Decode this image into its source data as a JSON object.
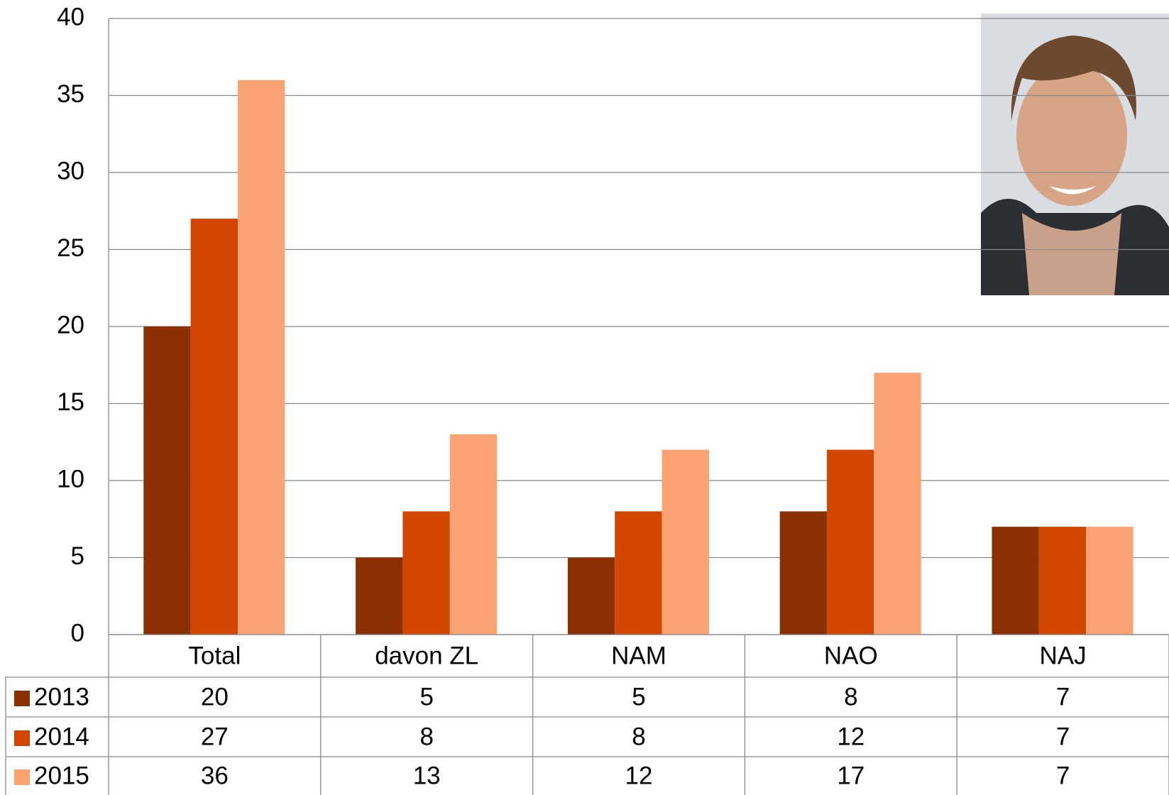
{
  "chart_data": {
    "type": "bar",
    "categories": [
      "Total",
      "davon ZL",
      "NAM",
      "NAO",
      "NAJ"
    ],
    "series": [
      {
        "name": "2013",
        "color": "#8b3000",
        "values": [
          20,
          5,
          5,
          8,
          7
        ]
      },
      {
        "name": "2014",
        "color": "#d24600",
        "values": [
          27,
          8,
          8,
          12,
          7
        ]
      },
      {
        "name": "2015",
        "color": "#fca374",
        "values": [
          36,
          13,
          12,
          17,
          7
        ]
      }
    ],
    "ylim": [
      0,
      40
    ],
    "yticks": [
      0,
      5,
      10,
      15,
      20,
      25,
      30,
      35,
      40
    ],
    "grid": true
  }
}
